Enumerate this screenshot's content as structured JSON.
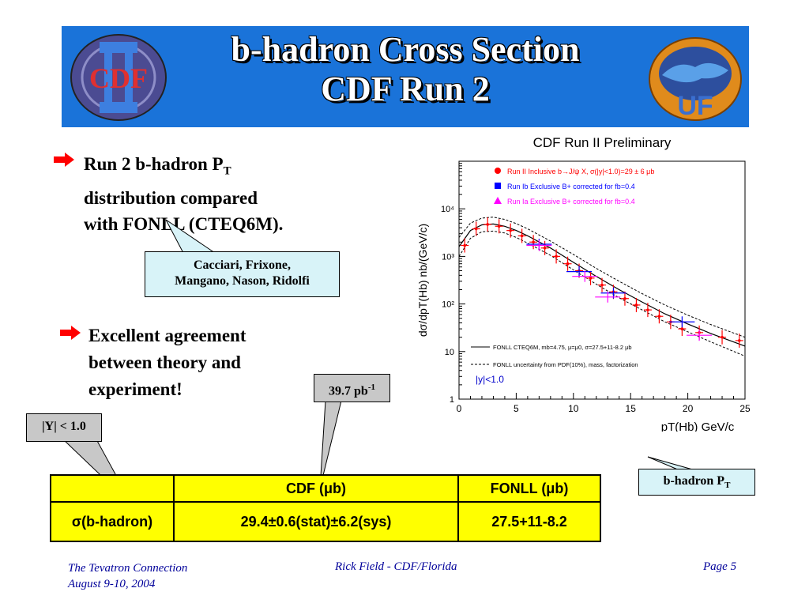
{
  "title": {
    "line1": "b-hadron Cross Section",
    "line2": "CDF Run 2"
  },
  "logos": {
    "left": "CDF",
    "right": "UF"
  },
  "bullets": [
    {
      "line1": "Run 2 b-hadron P",
      "sub": "T",
      "line2": "distribution compared",
      "line3": "with FONLL (CTEQ6M)."
    },
    {
      "line1": "Excellent agreement",
      "line2": "between theory and",
      "line3": "experiment!"
    }
  ],
  "callouts": {
    "authors_1": "Cacciari, Frixone,",
    "authors_2": "Mangano, Nason, Ridolfi",
    "lumi": "39.7 pb",
    "lumi_sup": "-1",
    "rapidity": "|Y| < 1.0",
    "pt_label": "b-hadron P",
    "pt_sub": "T"
  },
  "table": {
    "header": [
      "",
      "CDF  (μb)",
      "FONLL (μb)"
    ],
    "row_label": "σ(b-hadron)",
    "row": [
      "29.4±0.6(stat)±6.2(sys)",
      "27.5+11-8.2"
    ]
  },
  "footer": {
    "left1": "The Tevatron Connection",
    "left2": "August 9-10, 2004",
    "center": "Rick Field - CDF/Florida",
    "right": "Page 5"
  },
  "chart_data": {
    "type": "scatter",
    "title": "CDF Run II Preliminary",
    "xlabel": "pT(Hb) GeV/c",
    "ylabel": "dσ/dpT(Hb) nb/(GeV/c)",
    "xlim": [
      0,
      25
    ],
    "ylim": [
      1,
      100000
    ],
    "yscale": "log",
    "xticks": [
      "0",
      "5",
      "10",
      "15",
      "20",
      "25"
    ],
    "yticks": [
      "1",
      "10",
      "10²",
      "10³",
      "10⁴"
    ],
    "legend_position": "top-right",
    "legend": [
      {
        "name": "Run II Inclusive b→J/ψ X, σ(|y|<1.0)=29 ± 6 μb",
        "color": "#ff0000"
      },
      {
        "name": "Run Ib Exclusive B+ corrected for fb=0.4",
        "color": "#0000ff"
      },
      {
        "name": "Run Ia Exclusive B+ corrected for fb=0.4",
        "color": "#ff00ff"
      }
    ],
    "annotations": [
      "FONLL CTEQ6M, mb=4.75, μ=μ0, σ=27.5+11-8.2 μb",
      "FONLL uncertainty from PDF(10%), mass, factorization",
      "|y|<1.0"
    ],
    "series": [
      {
        "name": "Run II Inclusive b→J/ψ X",
        "color": "#ff0000",
        "x": [
          0.5,
          1.5,
          2.5,
          3.5,
          4.5,
          5.5,
          6.5,
          7.5,
          8.5,
          9.5,
          10.5,
          11.5,
          12.5,
          13.5,
          14.5,
          15.5,
          16.5,
          17.5,
          18.5,
          19.5,
          21,
          23,
          24.5
        ],
        "y": [
          1700,
          3800,
          4700,
          4300,
          3500,
          2700,
          2000,
          1500,
          1000,
          700,
          500,
          350,
          250,
          180,
          130,
          95,
          75,
          55,
          42,
          30,
          25,
          20,
          17
        ]
      },
      {
        "name": "Run Ib Exclusive B+",
        "color": "#0000ff",
        "x": [
          7,
          10.5,
          13.5,
          19.5
        ],
        "y": [
          1800,
          480,
          170,
          42
        ]
      },
      {
        "name": "Run Ia Exclusive B+",
        "color": "#ff00ff",
        "x": [
          7,
          11,
          13,
          21
        ],
        "y": [
          1700,
          380,
          140,
          22
        ]
      }
    ],
    "curves": [
      {
        "name": "FONLL central",
        "x": [
          0,
          1,
          2,
          3,
          4,
          5,
          6,
          8,
          10,
          12,
          14,
          16,
          18,
          20,
          22,
          25
        ],
        "y": [
          1600,
          3500,
          4600,
          4800,
          4300,
          3500,
          2700,
          1500,
          750,
          380,
          200,
          110,
          62,
          38,
          24,
          13
        ]
      },
      {
        "name": "FONLL upper",
        "x": [
          0,
          1,
          2,
          3,
          4,
          5,
          6,
          8,
          10,
          12,
          14,
          16,
          18,
          20,
          22,
          25
        ],
        "y": [
          2500,
          5000,
          6400,
          6700,
          6000,
          4900,
          3800,
          2100,
          1100,
          560,
          300,
          165,
          95,
          58,
          37,
          20
        ]
      },
      {
        "name": "FONLL lower",
        "x": [
          0,
          1,
          2,
          3,
          4,
          5,
          6,
          8,
          10,
          12,
          14,
          16,
          18,
          20,
          22,
          25
        ],
        "y": [
          1000,
          2400,
          3300,
          3400,
          3100,
          2500,
          1900,
          1050,
          520,
          260,
          135,
          75,
          42,
          26,
          16,
          8
        ]
      }
    ]
  }
}
